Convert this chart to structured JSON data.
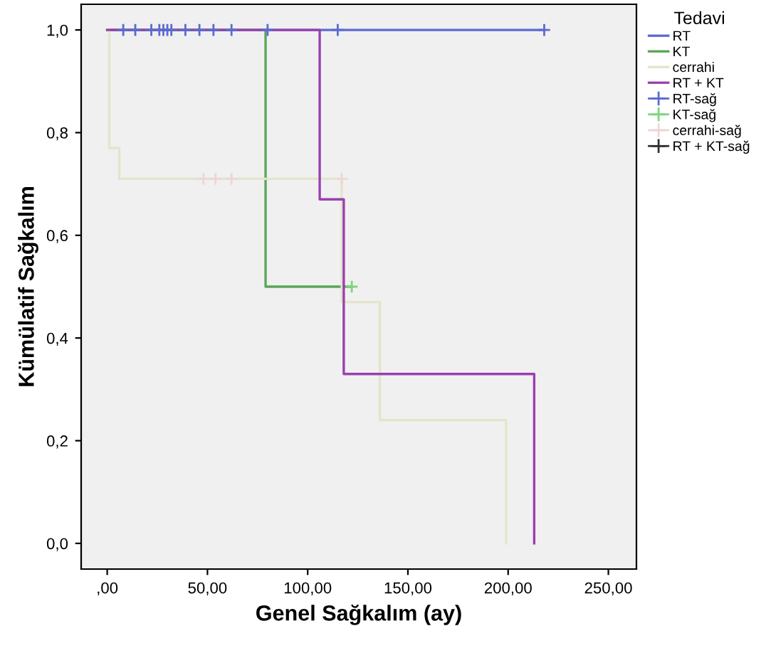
{
  "chart_data": {
    "type": "step",
    "xlabel": "Genel Sağkalım (ay)",
    "ylabel": "Kümülatif Sağkalım",
    "legend_title": "Tedavi",
    "legend": "right",
    "xlim": [
      -13,
      264
    ],
    "ylim": [
      -0.05,
      1.05
    ],
    "xticks": [
      {
        "value": 0,
        "label": ",00"
      },
      {
        "value": 50,
        "label": "50,00"
      },
      {
        "value": 100,
        "label": "100,00"
      },
      {
        "value": 150,
        "label": "150,00"
      },
      {
        "value": 200,
        "label": "200,00"
      },
      {
        "value": 250,
        "label": "250,00"
      }
    ],
    "yticks": [
      {
        "value": 0,
        "label": "0,0"
      },
      {
        "value": 0.2,
        "label": "0,2"
      },
      {
        "value": 0.4,
        "label": "0,4"
      },
      {
        "value": 0.6,
        "label": "0,6"
      },
      {
        "value": 0.8,
        "label": "0,8"
      },
      {
        "value": 1.0,
        "label": "1,0"
      }
    ],
    "grid": false,
    "series": [
      {
        "name": "RT",
        "color": "#5b6bd0",
        "x": [
          0,
          218
        ],
        "values": [
          1.0,
          1.0
        ]
      },
      {
        "name": "KT",
        "color": "#5aa55a",
        "x": [
          0,
          79,
          122
        ],
        "values": [
          1.0,
          0.5,
          0.5
        ]
      },
      {
        "name": "cerrahi",
        "color": "#e4e4cc",
        "x": [
          0,
          1,
          6,
          117,
          136,
          199
        ],
        "values": [
          1.0,
          0.77,
          0.71,
          0.47,
          0.24,
          0.0
        ]
      },
      {
        "name": "RT + KT",
        "color": "#9a3fb0",
        "x": [
          0,
          106,
          118,
          213
        ],
        "values": [
          1.0,
          0.67,
          0.33,
          0.0
        ]
      },
      {
        "name": "RT-sağ",
        "type": "scatter",
        "marker": "cross",
        "color": "#5b6bd0",
        "x": [
          8,
          14,
          22,
          26,
          28,
          30,
          32,
          39,
          46,
          53,
          62,
          80,
          115,
          218
        ],
        "values": [
          1,
          1,
          1,
          1,
          1,
          1,
          1,
          1,
          1,
          1,
          1,
          1,
          1,
          1
        ]
      },
      {
        "name": "KT-sağ",
        "type": "scatter",
        "marker": "cross",
        "color": "#7fd67f",
        "x": [
          122
        ],
        "values": [
          0.5
        ]
      },
      {
        "name": "cerrahi-sağ",
        "type": "scatter",
        "marker": "cross",
        "color": "#ecd6d6",
        "x": [
          48,
          54,
          62,
          117
        ],
        "values": [
          0.71,
          0.71,
          0.71,
          0.71
        ]
      },
      {
        "name": "RT + KT-sağ",
        "type": "scatter",
        "marker": "cross",
        "color": "#333333"
      }
    ]
  }
}
